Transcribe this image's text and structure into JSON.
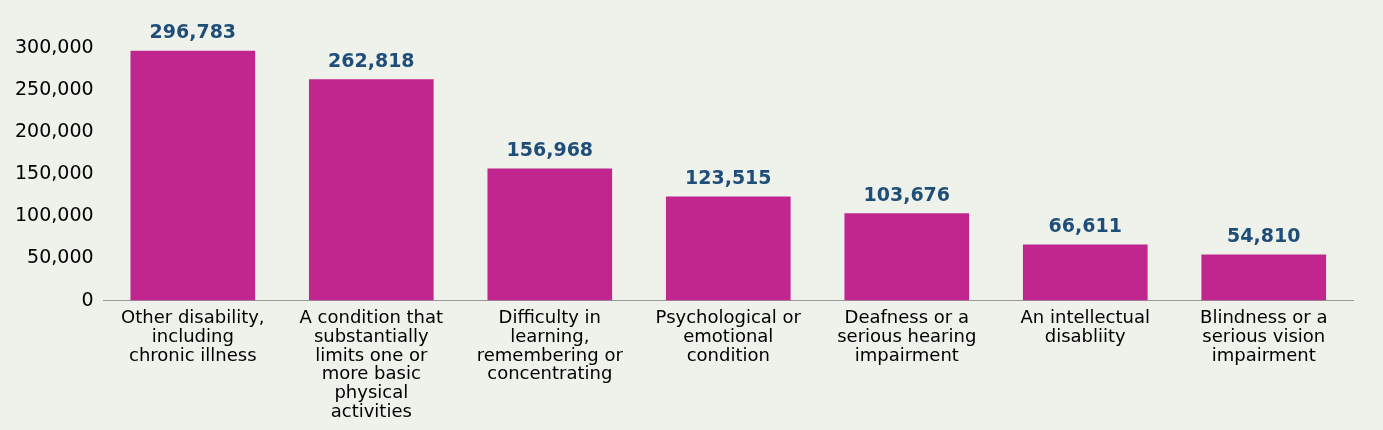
{
  "chart_data": {
    "type": "bar",
    "categories": [
      "Other disability, including chronic illness",
      "A condition that substantially limits one or more basic physical activities",
      "Difficulty in learning, remembering or concentrating",
      "Psychological or emotional condition",
      "Deafness or a serious hearing impairment",
      "An intellectual disabliity",
      "Blindness or a serious vision impairment"
    ],
    "values": [
      296783,
      262818,
      156968,
      123515,
      103676,
      66611,
      54810
    ],
    "value_labels": [
      "296,783",
      "262,818",
      "156,968",
      "123,515",
      "103,676",
      "66,611",
      "54,810"
    ],
    "color": "#c1268f",
    "ylim": [
      0,
      300000
    ],
    "yticks": [
      {
        "value": 0,
        "label": "0"
      },
      {
        "value": 50000,
        "label": "50,000"
      },
      {
        "value": 100000,
        "label": "100,000"
      },
      {
        "value": 150000,
        "label": "150,000"
      },
      {
        "value": 200000,
        "label": "200,000"
      },
      {
        "value": 250000,
        "label": "250,000"
      },
      {
        "value": 300000,
        "label": "300,000"
      }
    ],
    "grid": false,
    "legend": false
  }
}
